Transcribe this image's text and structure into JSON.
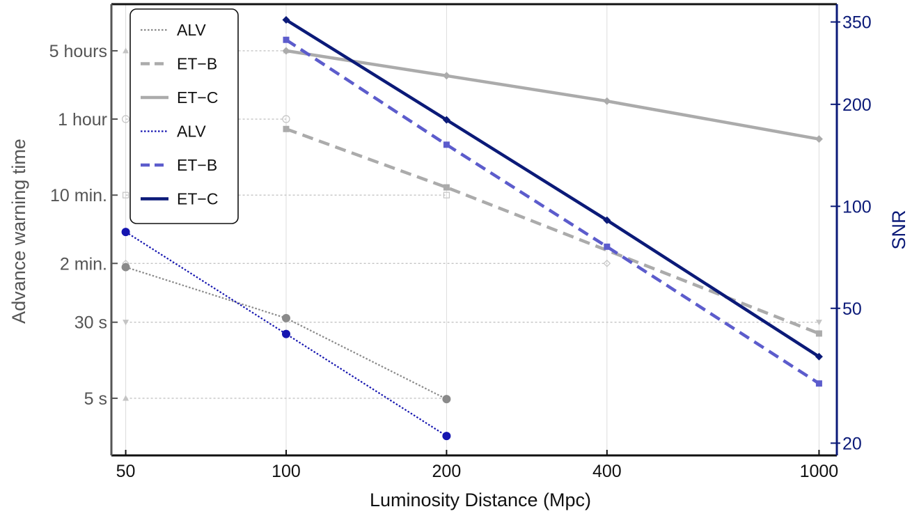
{
  "chart_data": {
    "type": "line",
    "xlabel": "Luminosity Distance (Mpc)",
    "ylabel_left": "Advance warning time",
    "ylabel_right": "SNR",
    "x_scale": "log",
    "x_ticks": [
      50,
      100,
      200,
      400,
      1000
    ],
    "x_tick_labels": [
      "50",
      "100",
      "200",
      "400",
      "1000"
    ],
    "xlim": [
      47,
      1080
    ],
    "y_left_scale": "log",
    "y_left_unit": "seconds",
    "y_left_ticks": [
      5,
      30,
      120,
      600,
      3600,
      18000
    ],
    "y_left_tick_labels": [
      "5 s",
      "30 s",
      "2 min.",
      "10 min.",
      "1 hour",
      "5 hours"
    ],
    "y_left_lim": [
      1.3,
      54000
    ],
    "y_right_scale": "log",
    "y_right_ticks": [
      20,
      50,
      100,
      200,
      350
    ],
    "y_right_tick_labels": [
      "20",
      "50",
      "100",
      "200",
      "350"
    ],
    "y_right_lim": [
      18.4,
      395
    ],
    "grid": true,
    "legend_position": "top-left",
    "colors": {
      "warning_alv": "#8a8a8a",
      "warning_et": "#ababab",
      "snr_alv": "#1515b0",
      "snr_et_b": "#5c5ccc",
      "snr_et_c": "#0b1a78",
      "reference": "#c4c4c4",
      "left_axis": "#555555",
      "right_axis": "#0b1a78"
    },
    "reference_levels": [
      {
        "y": 18000,
        "x_end": 100,
        "marker": "triangle-up"
      },
      {
        "y": 3600,
        "x_end": 100,
        "marker": "circle-dot"
      },
      {
        "y": 600,
        "x_end": 200,
        "marker": "square"
      },
      {
        "y": 120,
        "x_end": 400,
        "marker": "diamond"
      },
      {
        "y": 30,
        "x_end": 1000,
        "marker": "triangle-down"
      },
      {
        "y": 5,
        "x_end": 200,
        "marker": "triangle-up"
      }
    ],
    "series": [
      {
        "name": "ALV",
        "axis": "left",
        "style": "dotted",
        "x": [
          50,
          100,
          200
        ],
        "y": [
          110,
          33,
          4.9
        ]
      },
      {
        "name": "ET−B",
        "axis": "left",
        "style": "dashed",
        "x": [
          100,
          200,
          1000
        ],
        "y": [
          2850,
          720,
          23
        ]
      },
      {
        "name": "ET−C",
        "axis": "left",
        "style": "solid",
        "x": [
          100,
          200,
          400,
          1000
        ],
        "y": [
          18000,
          10000,
          5500,
          2250
        ]
      },
      {
        "name": "ALV",
        "axis": "right",
        "style": "dotted",
        "x": [
          50,
          100,
          200
        ],
        "y": [
          84,
          42,
          21
        ]
      },
      {
        "name": "ET−B",
        "axis": "right",
        "style": "dashed",
        "x": [
          100,
          200,
          400,
          1000
        ],
        "y": [
          310,
          152,
          76,
          30
        ]
      },
      {
        "name": "ET−C",
        "axis": "right",
        "style": "solid",
        "x": [
          100,
          200,
          400,
          1000
        ],
        "y": [
          355,
          180,
          91,
          36
        ]
      }
    ]
  }
}
